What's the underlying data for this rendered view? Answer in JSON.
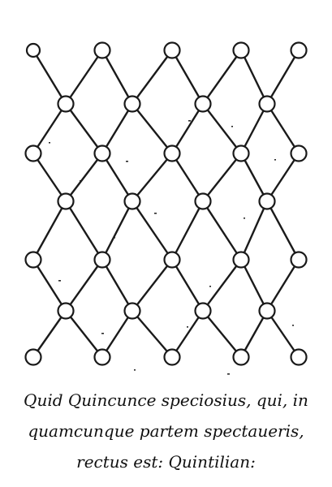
{
  "figure": {
    "pattern": "quincunx lattice",
    "caption_lines": [
      "Quid Quincunce speciosius, qui, in",
      "quamcunque partem spectaueris,",
      "rectus est: Quintilian:"
    ]
  }
}
